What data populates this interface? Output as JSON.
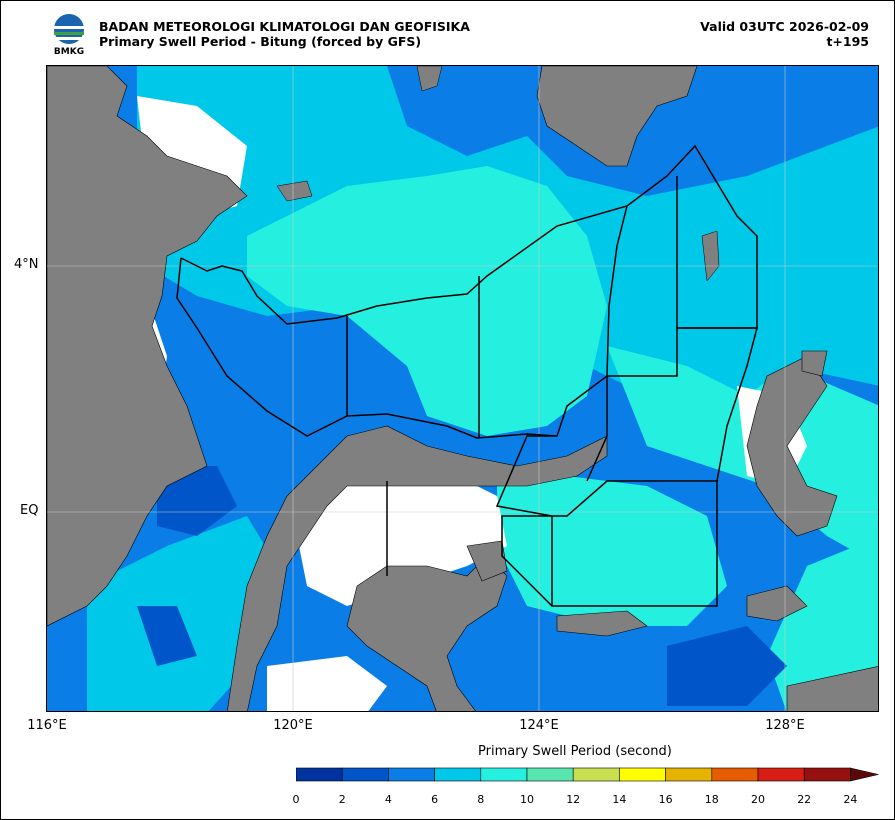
{
  "header": {
    "org": "BADAN METEOROLOGI KLIMATOLOGI DAN GEOFISIKA",
    "subtitle": "Primary Swell Period - Bitung (forced by GFS)",
    "valid": "Valid 03UTC 2026-02-09",
    "lead": "t+195",
    "logo_text": "BMKG"
  },
  "axes": {
    "y_labels": [
      "4°N",
      "EQ"
    ],
    "x_labels": [
      "116°E",
      "120°E",
      "124°E",
      "128°E"
    ]
  },
  "colorbar": {
    "title": "Primary Swell Period (second)",
    "ticks": [
      "0",
      "2",
      "4",
      "6",
      "8",
      "10",
      "12",
      "14",
      "16",
      "18",
      "20",
      "22",
      "24"
    ],
    "colors": [
      "#0033a0",
      "#0055c8",
      "#0a7ee6",
      "#00c8e8",
      "#25f0e0",
      "#58e6b0",
      "#c8e050",
      "#ffff00",
      "#e6b400",
      "#e65c00",
      "#d81e14",
      "#961010"
    ],
    "extend_color": "#5a0808"
  },
  "colors": {
    "land": "#808080",
    "water_white": "#ffffff"
  }
}
